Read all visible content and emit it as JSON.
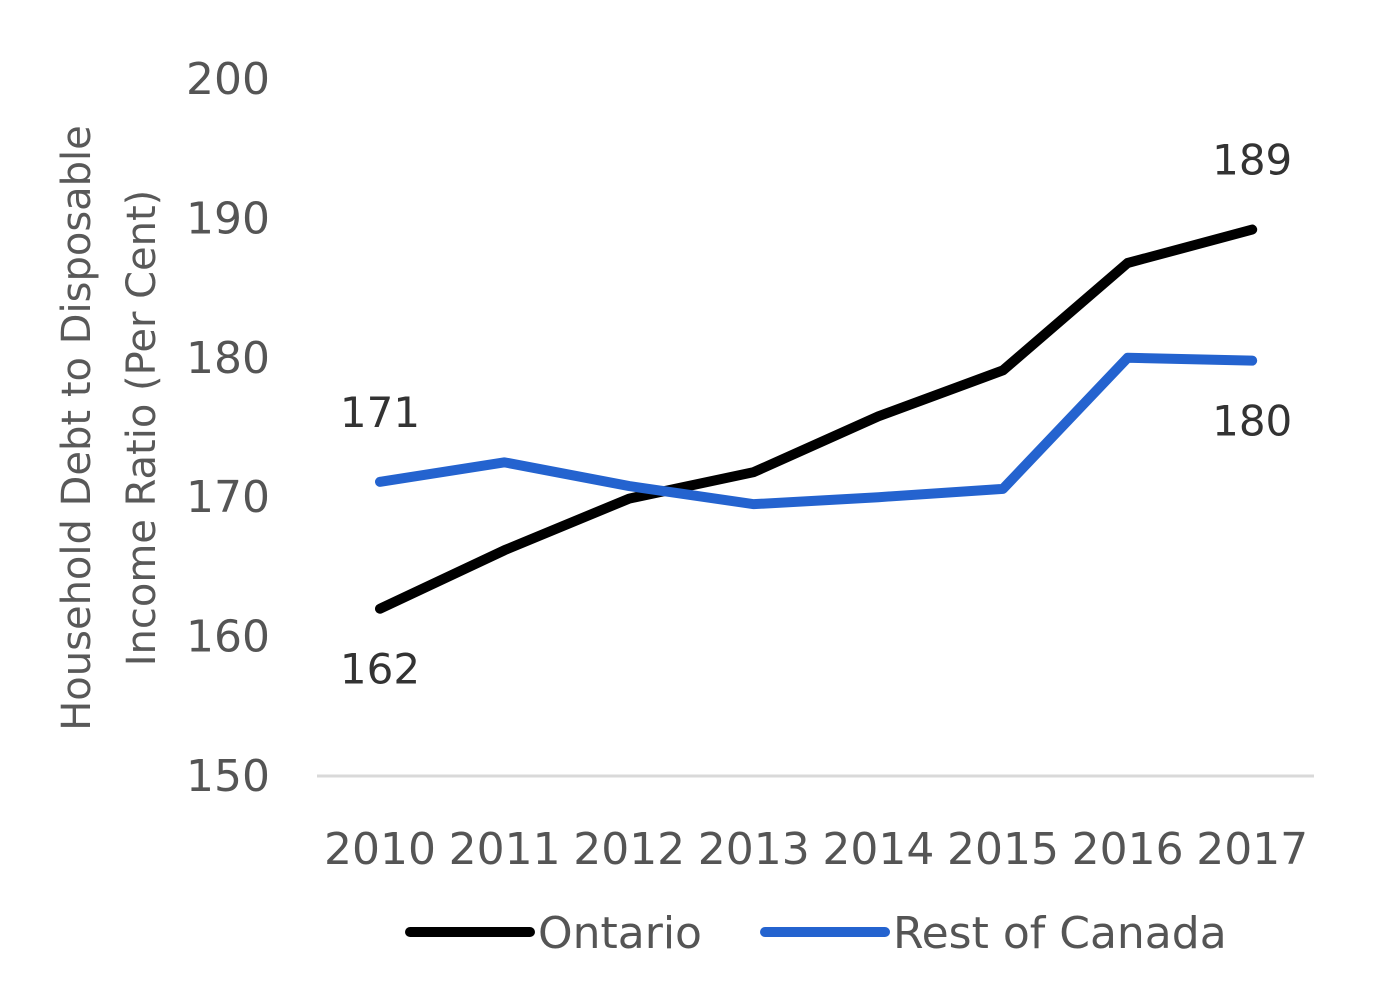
{
  "chart_data": {
    "type": "line",
    "title": "",
    "xlabel": "",
    "ylabel_lines": [
      "Household Debt to Disposable",
      "Income Ratio  (Per Cent)"
    ],
    "categories": [
      "2010",
      "2011",
      "2012",
      "2013",
      "2014",
      "2015",
      "2016",
      "2017"
    ],
    "ylim": [
      150,
      200
    ],
    "yticks": [
      "150",
      "160",
      "170",
      "180",
      "190",
      "200"
    ],
    "grid": false,
    "legend_position": "bottom",
    "series": [
      {
        "name": "Ontario",
        "color": "#000000",
        "values": [
          162,
          166.2,
          169.9,
          171.8,
          175.8,
          179.1,
          186.8,
          189.2
        ]
      },
      {
        "name": "Rest of Canada",
        "color": "#2463CF",
        "values": [
          171.1,
          172.5,
          170.8,
          169.5,
          170.0,
          170.6,
          180.0,
          179.8
        ]
      }
    ],
    "data_labels": [
      {
        "series": "Ontario",
        "category": "2010",
        "text": "162",
        "anchor": "below"
      },
      {
        "series": "Rest of Canada",
        "category": "2010",
        "text": "171",
        "anchor": "above"
      },
      {
        "series": "Ontario",
        "category": "2017",
        "text": "189",
        "anchor": "above"
      },
      {
        "series": "Rest of Canada",
        "category": "2017",
        "text": "180",
        "anchor": "below"
      }
    ]
  }
}
